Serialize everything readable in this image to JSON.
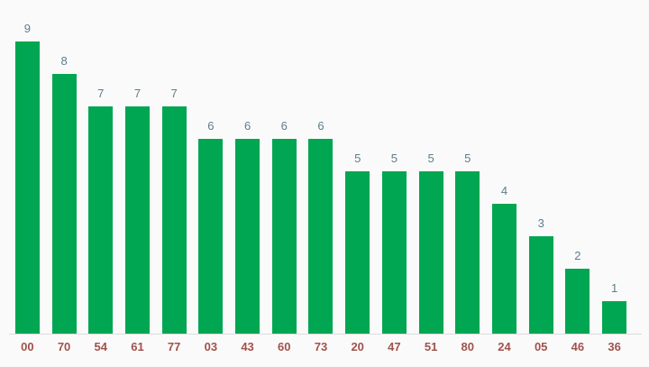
{
  "chart_data": {
    "type": "bar",
    "title": "",
    "xlabel": "",
    "ylabel": "",
    "categories": [
      "00",
      "70",
      "54",
      "61",
      "77",
      "03",
      "43",
      "60",
      "73",
      "20",
      "47",
      "51",
      "80",
      "24",
      "05",
      "46",
      "36"
    ],
    "values": [
      9,
      8,
      7,
      7,
      7,
      6,
      6,
      6,
      6,
      5,
      5,
      5,
      5,
      4,
      3,
      2,
      1
    ],
    "ylim": [
      0,
      10
    ],
    "grid": false,
    "legend": "none",
    "annotations": "value shown above each bar",
    "colors": {
      "bar": "#00a651",
      "value_label": "#607d8b",
      "x_tick_label": "#a0524b",
      "axis_line": "#dcdcdc",
      "background": "#fafafa"
    }
  }
}
